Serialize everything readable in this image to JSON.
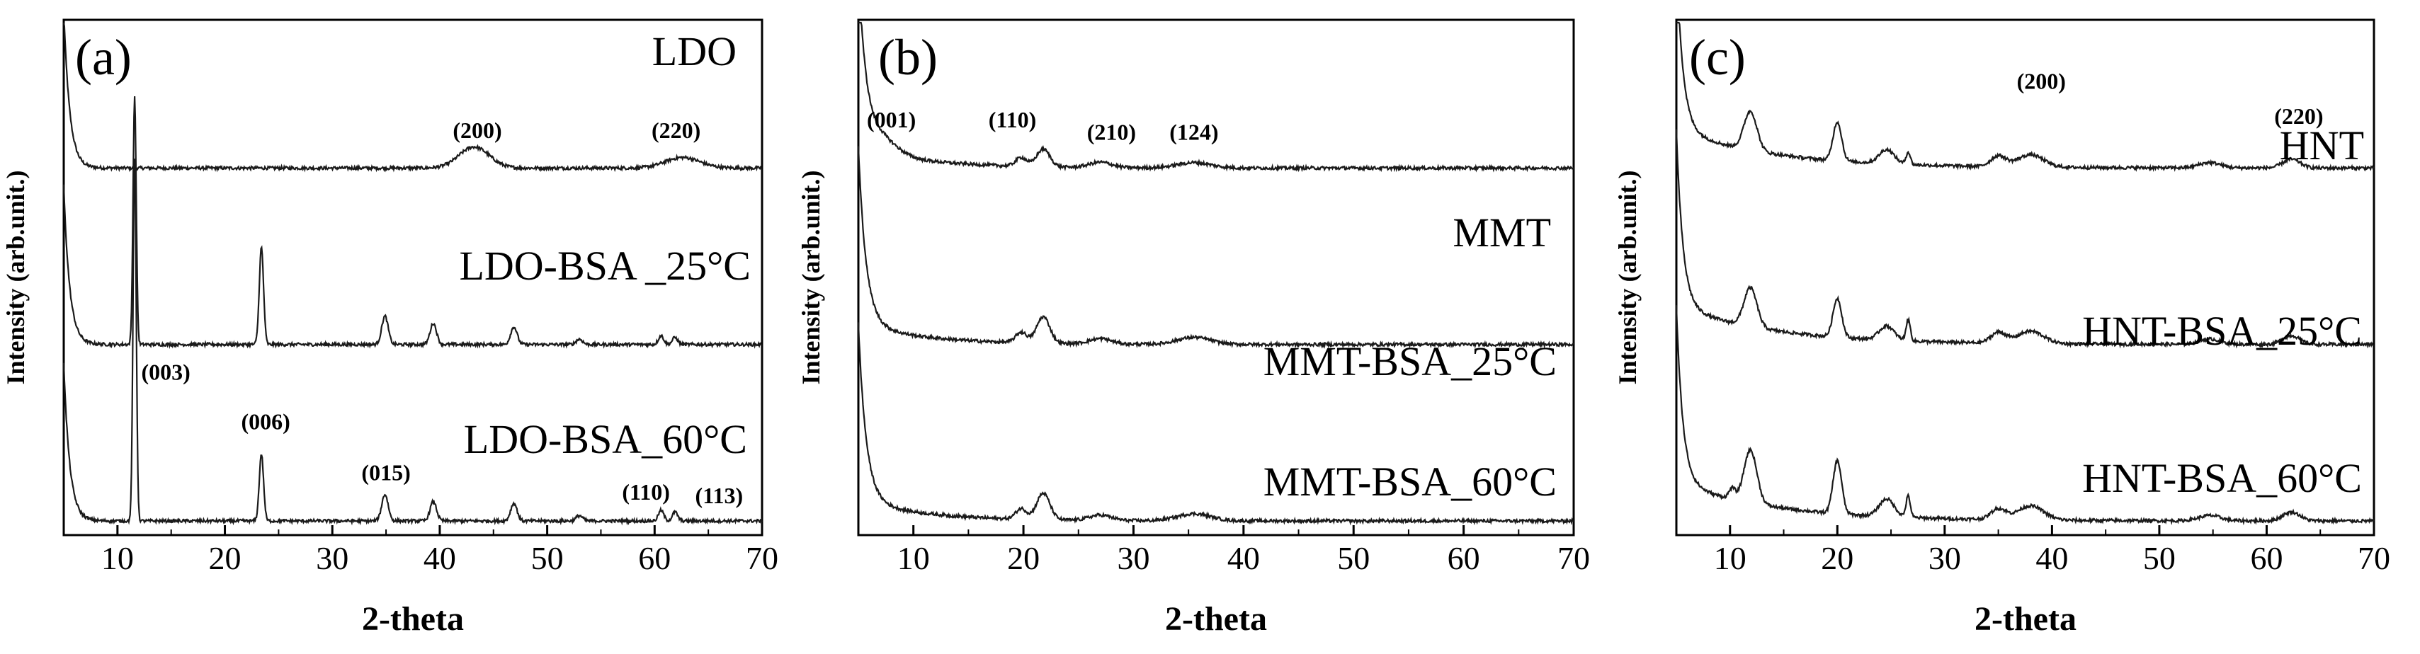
{
  "chart_data": [
    {
      "type": "line",
      "panel_label": "(a)",
      "xlabel": "2-theta",
      "ylabel": "Intensity (arb.unit.)",
      "xlim": [
        5,
        70
      ],
      "xticks": [
        10,
        20,
        30,
        40,
        50,
        60,
        70
      ],
      "yticks": "none",
      "series": [
        {
          "name": "LDO",
          "offset": 2.0,
          "peaks": [
            [
              43.2,
              0.12,
              1.4
            ],
            [
              62.6,
              0.06,
              1.6
            ]
          ]
        },
        {
          "name": "LDO-BSA _25°C",
          "offset": 1.0,
          "peaks": [
            [
              11.6,
              1.4,
              0.15
            ],
            [
              23.4,
              0.55,
              0.2
            ],
            [
              34.9,
              0.16,
              0.3
            ],
            [
              39.4,
              0.12,
              0.3
            ],
            [
              46.9,
              0.1,
              0.3
            ],
            [
              53.0,
              0.03,
              0.3
            ],
            [
              60.6,
              0.05,
              0.25
            ],
            [
              61.9,
              0.04,
              0.25
            ]
          ]
        },
        {
          "name": "LDO-BSA_60°C",
          "offset": 0.0,
          "peaks": [
            [
              11.6,
              2.05,
              0.15
            ],
            [
              23.4,
              0.38,
              0.2
            ],
            [
              34.9,
              0.15,
              0.3
            ],
            [
              39.4,
              0.11,
              0.3
            ],
            [
              46.9,
              0.1,
              0.3
            ],
            [
              53.0,
              0.03,
              0.3
            ],
            [
              60.6,
              0.06,
              0.25
            ],
            [
              61.9,
              0.05,
              0.25
            ]
          ]
        }
      ],
      "annotations": [
        {
          "text": "(200)",
          "x": 43.5,
          "y": 2.17
        },
        {
          "text": "(220)",
          "x": 62.0,
          "y": 2.17
        },
        {
          "text": "(003)",
          "x": 14.5,
          "y": 0.8
        },
        {
          "text": "(006)",
          "x": 23.8,
          "y": 0.52
        },
        {
          "text": "(015)",
          "x": 35.0,
          "y": 0.23
        },
        {
          "text": "(110)",
          "x": 59.2,
          "y": 0.12
        },
        {
          "text": "(113)",
          "x": 66.0,
          "y": 0.1
        }
      ]
    },
    {
      "type": "line",
      "panel_label": "(b)",
      "xlabel": "2-theta",
      "ylabel": "Intensity (arb.unit.)",
      "xlim": [
        5,
        70
      ],
      "xticks": [
        10,
        20,
        30,
        40,
        50,
        60,
        70
      ],
      "yticks": "none",
      "series": [
        {
          "name": "MMT",
          "offset": 2.0,
          "peaks": [
            [
              7.0,
              0.08,
              1.5
            ],
            [
              19.8,
              0.05,
              0.5
            ],
            [
              21.8,
              0.1,
              0.6
            ],
            [
              27.0,
              0.03,
              1.0
            ],
            [
              35.5,
              0.03,
              1.5
            ]
          ]
        },
        {
          "name": "MMT-BSA_25°C",
          "offset": 1.0,
          "peaks": [
            [
              19.8,
              0.06,
              0.5
            ],
            [
              21.8,
              0.15,
              0.6
            ],
            [
              27.0,
              0.03,
              1.0
            ],
            [
              35.5,
              0.04,
              1.5
            ]
          ]
        },
        {
          "name": "MMT-BSA_60°C",
          "offset": 0.0,
          "peaks": [
            [
              19.8,
              0.06,
              0.5
            ],
            [
              21.8,
              0.15,
              0.6
            ],
            [
              27.0,
              0.03,
              1.0
            ],
            [
              35.5,
              0.04,
              1.5
            ]
          ]
        }
      ],
      "annotations": [
        {
          "text": "(001)",
          "x": 8.0,
          "y": 2.23
        },
        {
          "text": "(110)",
          "x": 19.0,
          "y": 2.23
        },
        {
          "text": "(210)",
          "x": 28.0,
          "y": 2.16
        },
        {
          "text": "(124)",
          "x": 35.5,
          "y": 2.16
        }
      ]
    },
    {
      "type": "line",
      "panel_label": "(c)",
      "xlabel": "2-theta",
      "ylabel": "Intensity (arb.unit.)",
      "xlim": [
        5,
        70
      ],
      "xticks": [
        10,
        20,
        30,
        40,
        50,
        60,
        70
      ],
      "yticks": "none",
      "series": [
        {
          "name": "HNT",
          "offset": 2.0,
          "peaks": [
            [
              11.9,
              0.22,
              0.6
            ],
            [
              20.0,
              0.22,
              0.4
            ],
            [
              24.6,
              0.08,
              0.7
            ],
            [
              26.6,
              0.07,
              0.2
            ],
            [
              35.0,
              0.06,
              0.7
            ],
            [
              38.0,
              0.07,
              1.2
            ],
            [
              54.7,
              0.03,
              1.0
            ],
            [
              62.3,
              0.05,
              0.8
            ]
          ]
        },
        {
          "name": "HNT-BSA_25°C",
          "offset": 1.0,
          "peaks": [
            [
              11.9,
              0.22,
              0.6
            ],
            [
              20.0,
              0.22,
              0.4
            ],
            [
              24.6,
              0.08,
              0.7
            ],
            [
              26.6,
              0.12,
              0.2
            ],
            [
              35.0,
              0.06,
              0.7
            ],
            [
              38.0,
              0.07,
              1.2
            ],
            [
              54.7,
              0.03,
              1.0
            ],
            [
              62.3,
              0.05,
              0.8
            ]
          ]
        },
        {
          "name": "HNT-BSA_60°C",
          "offset": 0.0,
          "peaks": [
            [
              10.2,
              0.06,
              0.3
            ],
            [
              11.9,
              0.3,
              0.6
            ],
            [
              20.0,
              0.3,
              0.4
            ],
            [
              24.6,
              0.1,
              0.7
            ],
            [
              26.6,
              0.12,
              0.2
            ],
            [
              35.0,
              0.06,
              0.7
            ],
            [
              38.0,
              0.08,
              1.2
            ],
            [
              54.7,
              0.03,
              1.0
            ],
            [
              62.3,
              0.05,
              0.8
            ]
          ]
        }
      ],
      "annotations": [
        {
          "text": "(200)",
          "x": 39.0,
          "y": 2.45
        },
        {
          "text": "(220)",
          "x": 63.0,
          "y": 2.25
        }
      ]
    }
  ]
}
